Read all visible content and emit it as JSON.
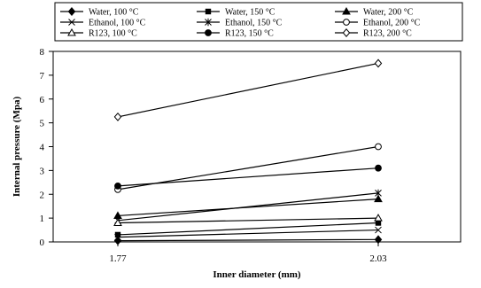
{
  "chart_data": {
    "type": "line",
    "title": "",
    "xlabel": "Inner diameter (mm)",
    "ylabel": "Internal pressure (Mpa)",
    "categories": [
      "1.77",
      "2.03"
    ],
    "ylim": [
      0,
      8
    ],
    "yticks": [
      "0",
      "1",
      "2",
      "3",
      "4",
      "5",
      "6",
      "7",
      "8"
    ],
    "grid": false,
    "legend_position": "top",
    "series": [
      {
        "name": "Water, 100 °C",
        "marker": "diamond-filled",
        "values": [
          0.05,
          0.1
        ]
      },
      {
        "name": "Water, 150 °C",
        "marker": "square-filled",
        "values": [
          0.3,
          0.8
        ]
      },
      {
        "name": "Water, 200 °C",
        "marker": "triangle-filled",
        "values": [
          1.1,
          1.8
        ]
      },
      {
        "name": "Ethanol, 100 °C",
        "marker": "x",
        "values": [
          0.2,
          0.5
        ]
      },
      {
        "name": "Ethanol, 150 °C",
        "marker": "asterisk",
        "values": [
          0.9,
          2.05
        ]
      },
      {
        "name": "Ethanol, 200 °C",
        "marker": "circle-open",
        "values": [
          2.2,
          4.0
        ]
      },
      {
        "name": "R123, 100 °C",
        "marker": "triangle-open",
        "values": [
          0.8,
          1.0
        ]
      },
      {
        "name": "R123, 150 °C",
        "marker": "circle-filled",
        "values": [
          2.35,
          3.1
        ]
      },
      {
        "name": "R123, 200 °C",
        "marker": "diamond-open",
        "values": [
          5.25,
          7.5
        ]
      }
    ]
  }
}
